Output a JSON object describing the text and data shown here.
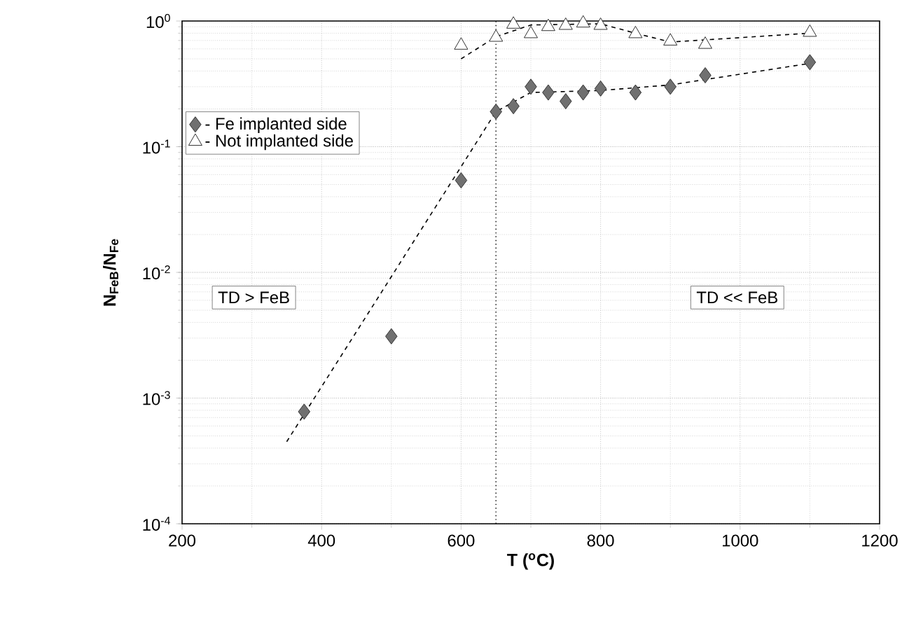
{
  "chart_data": {
    "type": "scatter",
    "xlabel": "**T ($^{o}$C)**",
    "ylabel": "**N$_{FeB}$/N$_{Fe}$**",
    "xlim": [
      200,
      1200
    ],
    "xticks": [
      200,
      400,
      600,
      800,
      1000,
      1200
    ],
    "ylim": [
      0.0001,
      1
    ],
    "yticks": [
      {
        "value": 0.0001,
        "label": "10$^{-4}$"
      },
      {
        "value": 0.001,
        "label": "10$^{-3}$"
      },
      {
        "value": 0.01,
        "label": "10$^{-2}$"
      },
      {
        "value": 0.1,
        "label": "10$^{-1}$"
      },
      {
        "value": 1,
        "label": "10$^{0}$"
      }
    ],
    "log": "y",
    "grid": true,
    "legend": "top left",
    "series": [
      {
        "name": "- Fe implanted side",
        "marker": "diamond",
        "color": "#707070",
        "x": [
          375,
          500,
          600,
          650,
          675,
          700,
          725,
          750,
          775,
          800,
          850,
          900,
          950,
          1100
        ],
        "values": [
          0.00078,
          0.0031,
          0.054,
          0.19,
          0.21,
          0.3,
          0.27,
          0.23,
          0.27,
          0.29,
          0.27,
          0.3,
          0.37,
          0.47
        ]
      },
      {
        "name": "- Not implanted side",
        "marker": "triangle",
        "color": "#ffffff",
        "x": [
          600,
          650,
          675,
          700,
          725,
          750,
          775,
          800,
          850,
          900,
          950,
          1100
        ],
        "values": [
          0.64,
          0.74,
          0.94,
          0.79,
          0.9,
          0.92,
          0.96,
          0.92,
          0.79,
          0.69,
          0.65,
          0.81
        ]
      },
      {
        "type": "line",
        "line_style": "dashed",
        "color": "#000000",
        "x": [
          350,
          650,
          700,
          800,
          900,
          1100
        ],
        "values": [
          0.00045,
          0.19,
          0.27,
          0.28,
          0.31,
          0.46
        ]
      },
      {
        "type": "line",
        "line_style": "dashed",
        "color": "#000000",
        "x": [
          600,
          650,
          700,
          800,
          850,
          900,
          1100
        ],
        "values": [
          0.5,
          0.75,
          0.93,
          0.95,
          0.8,
          0.68,
          0.8
        ]
      }
    ],
    "ref_lines": [
      {
        "axis": "x",
        "value": 650,
        "color": "#000000",
        "line_style": "dotted"
      }
    ],
    "annotations": [
      "TD > FeB",
      "TD << FeB"
    ]
  }
}
